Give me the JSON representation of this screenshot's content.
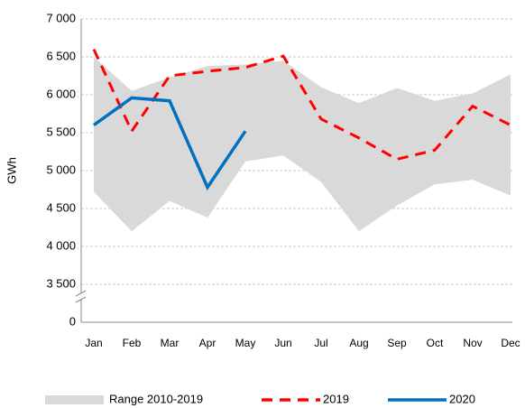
{
  "chart_data": {
    "type": "line",
    "y_label": "GWh",
    "categories": [
      "Jan",
      "Feb",
      "Mar",
      "Apr",
      "May",
      "Jun",
      "Jul",
      "Aug",
      "Sep",
      "Oct",
      "Nov",
      "Dec"
    ],
    "ylim": [
      0,
      7000
    ],
    "axis_break": true,
    "yticks": [
      0,
      {
        "value": 3500,
        "label": "3 500"
      },
      {
        "value": 4000,
        "label": "4 000"
      },
      {
        "value": 4500,
        "label": "4 500"
      },
      {
        "value": 5000,
        "label": "5 000"
      },
      {
        "value": 5500,
        "label": "5 500"
      },
      {
        "value": 6000,
        "label": "6 000"
      },
      {
        "value": 6500,
        "label": "6 500"
      },
      {
        "value": 7000,
        "label": "7 000"
      }
    ],
    "grid": true,
    "legend": "bottom",
    "series": [
      {
        "name": "Range 2010-2019",
        "color": "#d9d9d9",
        "style": "range",
        "high": [
          6500,
          6050,
          6230,
          6380,
          6400,
          6450,
          6100,
          5890,
          6090,
          5920,
          6020,
          6270
        ],
        "low": [
          4720,
          4200,
          4600,
          4380,
          5120,
          5200,
          4850,
          4200,
          4540,
          4820,
          4880,
          4670
        ]
      },
      {
        "name": "2019",
        "color": "#ff0000",
        "style": "dashed",
        "values": [
          6600,
          5520,
          6250,
          6310,
          6360,
          6510,
          5680,
          5430,
          5150,
          5270,
          5850,
          5600
        ]
      },
      {
        "name": "2020",
        "color": "#0070c0",
        "style": "solid",
        "values": [
          5600,
          5960,
          5920,
          4780,
          5520,
          null,
          null,
          null,
          null,
          null,
          null,
          null
        ]
      }
    ]
  }
}
